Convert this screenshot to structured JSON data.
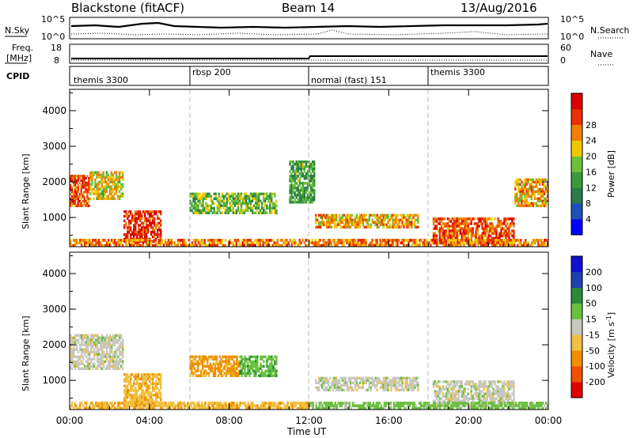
{
  "header": {
    "station": "Blackstone (fitACF)",
    "beam": "Beam 14",
    "date": "13/Aug/2016"
  },
  "noise_panel": {
    "left_label": "N.Sky",
    "right_label": "N.Search",
    "left_top_tick": "10^5",
    "left_bottom_tick": "10^0",
    "right_top_tick": "10^5",
    "right_bottom_tick": "10^0"
  },
  "freq_panel": {
    "left_label_line1": "Freq.",
    "left_label_line2": "[MHz]",
    "right_label": "Nave",
    "left_top_tick": "18",
    "left_bottom_tick": "8",
    "right_top_tick": "60",
    "right_bottom_tick": "0"
  },
  "cpid_panel": {
    "label": "CPID",
    "modes": [
      {
        "name": "themis 3300",
        "start_hour": 0
      },
      {
        "name": "rbsp 200",
        "start_hour": 6
      },
      {
        "name": "normal (fast) 151",
        "start_hour": 12
      },
      {
        "name": "themis 3300",
        "start_hour": 18
      }
    ]
  },
  "power_panel": {
    "ylabel": "Slant Range [km]",
    "yticks": [
      "1000",
      "2000",
      "3000",
      "4000"
    ],
    "colorbar_label": "Power [dB]",
    "colorbar_ticks": [
      "4",
      "8",
      "12",
      "16",
      "20",
      "24",
      "28"
    ],
    "colorbar_colors": [
      "#0000ff",
      "#1f4fb8",
      "#2a7a4a",
      "#3a9a3a",
      "#6bc23a",
      "#f0c800",
      "#f08000",
      "#e83000",
      "#d80000"
    ]
  },
  "velocity_panel": {
    "ylabel": "Slant Range [km]",
    "yticks": [
      "1000",
      "2000",
      "3000",
      "4000"
    ],
    "colorbar_label": "Velocity [m s",
    "colorbar_label_sup": "-1",
    "colorbar_label_end": "]",
    "colorbar_ticks": [
      "-200",
      "-100",
      "-50",
      "-15",
      "15",
      "50",
      "100",
      "200"
    ],
    "colorbar_colors": [
      "#e00000",
      "#f05000",
      "#f09000",
      "#f0c040",
      "#c8c8c0",
      "#6cc040",
      "#2a8a3a",
      "#1f40b0",
      "#1010d0"
    ]
  },
  "xaxis": {
    "label": "Time UT",
    "ticks": [
      "00:00",
      "04:00",
      "08:00",
      "12:00",
      "16:00",
      "20:00",
      "00:00"
    ]
  },
  "chart_data": {
    "type": "heatmap",
    "title": "Blackstone (fitACF)  Beam 14  13/Aug/2016",
    "xlabel": "Time UT",
    "ylabel": "Slant Range [km]",
    "xlim_hours": [
      0,
      24
    ],
    "ylim_km": [
      180,
      4600
    ],
    "power_colorbar": {
      "label": "Power [dB]",
      "range": [
        0,
        30
      ]
    },
    "velocity_colorbar": {
      "label": "Velocity [m s-1]",
      "range": [
        -250,
        250
      ]
    },
    "power_regions": [
      {
        "t0": 0.0,
        "t1": 1.0,
        "r0": 1300,
        "r1": 2200,
        "db": 24
      },
      {
        "t0": 1.0,
        "t1": 2.7,
        "r0": 1500,
        "r1": 2300,
        "db": 18
      },
      {
        "t0": 2.7,
        "t1": 4.6,
        "r0": 300,
        "r1": 1200,
        "db": 26
      },
      {
        "t0": 6.0,
        "t1": 10.4,
        "r0": 1100,
        "r1": 1700,
        "db": 14
      },
      {
        "t0": 11.0,
        "t1": 12.3,
        "r0": 1400,
        "r1": 2600,
        "db": 12
      },
      {
        "t0": 12.3,
        "t1": 17.5,
        "r0": 700,
        "r1": 1100,
        "db": 20
      },
      {
        "t0": 18.2,
        "t1": 22.3,
        "r0": 250,
        "r1": 1000,
        "db": 24
      },
      {
        "t0": 22.3,
        "t1": 24.0,
        "r0": 1300,
        "r1": 2100,
        "db": 20
      },
      {
        "t0": 0.0,
        "t1": 24.0,
        "r0": 180,
        "r1": 400,
        "db": 22
      }
    ],
    "velocity_regions": [
      {
        "t0": 0.0,
        "t1": 2.7,
        "r0": 1300,
        "r1": 2300,
        "v": 0
      },
      {
        "t0": 2.7,
        "t1": 4.6,
        "r0": 300,
        "r1": 1200,
        "v": -40
      },
      {
        "t0": 6.0,
        "t1": 8.5,
        "r0": 1100,
        "r1": 1700,
        "v": -60
      },
      {
        "t0": 8.5,
        "t1": 10.4,
        "r0": 1100,
        "r1": 1700,
        "v": 40
      },
      {
        "t0": 12.3,
        "t1": 17.5,
        "r0": 700,
        "r1": 1100,
        "v": 0
      },
      {
        "t0": 18.2,
        "t1": 22.3,
        "r0": 250,
        "r1": 1000,
        "v": 0
      },
      {
        "t0": 0.0,
        "t1": 12.0,
        "r0": 180,
        "r1": 400,
        "v": -40
      },
      {
        "t0": 12.0,
        "t1": 24.0,
        "r0": 180,
        "r1": 400,
        "v": 30
      }
    ]
  }
}
